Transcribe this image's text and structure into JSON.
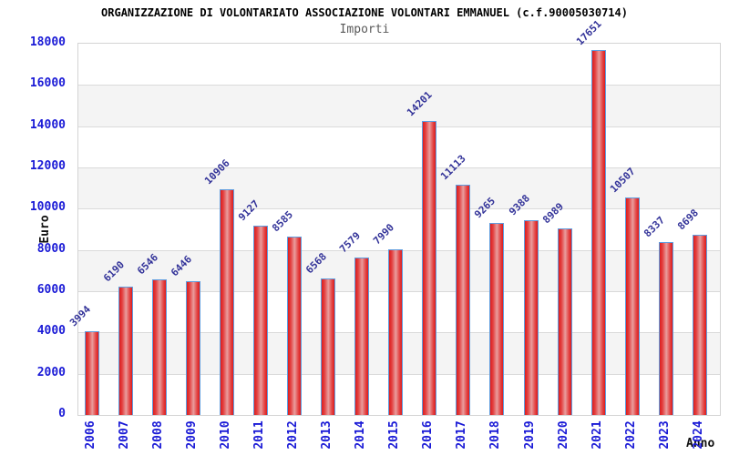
{
  "header": {
    "title": "ORGANIZZAZIONE DI VOLONTARIATO ASSOCIAZIONE VOLONTARI EMMANUEL (c.f.90005030714)",
    "subtitle": "Importi"
  },
  "chart_data": {
    "type": "bar",
    "title": "ORGANIZZAZIONE DI VOLONTARIATO ASSOCIAZIONE VOLONTARI EMMANUEL (c.f.90005030714)",
    "subtitle": "Importi",
    "xlabel": "Anno",
    "ylabel": "Euro",
    "categories": [
      "2006",
      "2007",
      "2008",
      "2009",
      "2010",
      "2011",
      "2012",
      "2013",
      "2014",
      "2015",
      "2016",
      "2017",
      "2018",
      "2019",
      "2020",
      "2021",
      "2022",
      "2023",
      "2024"
    ],
    "values": [
      3994,
      6190,
      6546,
      6446,
      10906,
      9127,
      8585,
      6568,
      7579,
      7990,
      14201,
      11113,
      9265,
      9388,
      8989,
      17651,
      10507,
      8337,
      8698
    ],
    "ylim": [
      0,
      18000
    ],
    "ytick_step": 2000,
    "grid": true,
    "band_fill": "alternating horizontal bands",
    "legend_position": "none",
    "value_labels_rotation_deg": -45,
    "xtick_rotation_deg": -90
  },
  "colors": {
    "bar_dark": "#dd1d1d",
    "bar_mid": "#e34141",
    "bar_light": "#e99d9d",
    "bar_border": "#5f9ddf",
    "axis_tick_label": "#1a1ad6",
    "value_label": "#333399",
    "grid_line": "#dadada",
    "band_gray": "#f4f4f4",
    "plot_border": "#d4d4d4",
    "title_color": "#000000",
    "subtitle_color": "#5a5a5a",
    "axis_title_color": "#111111",
    "background": "#ffffff"
  }
}
